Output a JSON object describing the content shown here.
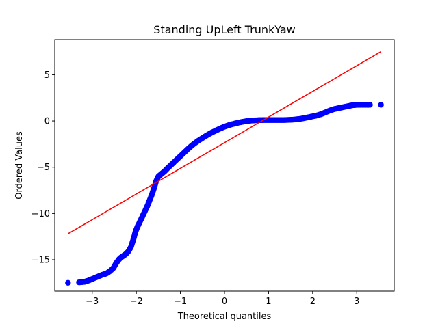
{
  "chart_data": {
    "type": "scatter",
    "title": "Standing UpLeft TrunkYaw",
    "xlabel": "Theoretical quantiles",
    "ylabel": "Ordered Values",
    "xlim": [
      -3.85,
      3.85
    ],
    "ylim": [
      -18.4,
      8.8
    ],
    "xticks": [
      {
        "value": -3,
        "label": "−3"
      },
      {
        "value": -2,
        "label": "−2"
      },
      {
        "value": -1,
        "label": "−1"
      },
      {
        "value": 0,
        "label": "0"
      },
      {
        "value": 1,
        "label": "1"
      },
      {
        "value": 2,
        "label": "2"
      },
      {
        "value": 3,
        "label": "3"
      }
    ],
    "yticks": [
      {
        "value": 5,
        "label": "5"
      },
      {
        "value": 0,
        "label": "0"
      },
      {
        "value": -5,
        "label": "−5"
      },
      {
        "value": -10,
        "label": "−10"
      },
      {
        "value": -15,
        "label": "−15"
      }
    ],
    "grid": false,
    "legend": "none",
    "colors": {
      "points": "#0000ff",
      "fit_line": "#ff0000"
    },
    "series": [
      {
        "kind": "points",
        "x": [
          -3.55,
          -3.3,
          -3.18,
          -3.08,
          -2.98,
          -2.88,
          -2.78,
          -2.68,
          -2.6,
          -2.52,
          -2.46,
          -2.4,
          -2.36,
          -2.3,
          -2.24,
          -2.18,
          -2.12,
          -2.06,
          -2.02,
          -1.98,
          -1.95,
          -1.9,
          -1.85,
          -1.8,
          -1.75,
          -1.7,
          -1.65,
          -1.6,
          -1.55,
          -1.5,
          -1.45,
          -1.4,
          -1.35,
          -1.3,
          -1.2,
          -1.1,
          -1.0,
          -0.9,
          -0.8,
          -0.7,
          -0.6,
          -0.5,
          -0.4,
          -0.3,
          -0.2,
          -0.1,
          0.0,
          0.1,
          0.2,
          0.3,
          0.4,
          0.5,
          0.6,
          0.7,
          0.8,
          0.9,
          1.0,
          1.1,
          1.2,
          1.3,
          1.4,
          1.5,
          1.6,
          1.7,
          1.8,
          1.9,
          2.0,
          2.1,
          2.2,
          2.3,
          2.4,
          2.5,
          2.6,
          2.7,
          2.8,
          2.9,
          3.0,
          3.1,
          3.3,
          3.55
        ],
        "y": [
          -17.5,
          -17.45,
          -17.4,
          -17.25,
          -17.05,
          -16.85,
          -16.65,
          -16.5,
          -16.25,
          -15.9,
          -15.4,
          -15.0,
          -14.8,
          -14.6,
          -14.4,
          -14.1,
          -13.6,
          -12.7,
          -12.0,
          -11.5,
          -11.2,
          -10.7,
          -10.2,
          -9.7,
          -9.2,
          -8.6,
          -8.0,
          -7.3,
          -6.5,
          -6.0,
          -5.8,
          -5.6,
          -5.4,
          -5.15,
          -4.7,
          -4.25,
          -3.8,
          -3.35,
          -2.9,
          -2.5,
          -2.15,
          -1.85,
          -1.55,
          -1.28,
          -1.05,
          -0.82,
          -0.62,
          -0.45,
          -0.32,
          -0.2,
          -0.1,
          -0.02,
          0.04,
          0.07,
          0.09,
          0.1,
          0.1,
          0.1,
          0.1,
          0.1,
          0.11,
          0.13,
          0.16,
          0.22,
          0.3,
          0.4,
          0.5,
          0.6,
          0.75,
          0.95,
          1.15,
          1.3,
          1.4,
          1.5,
          1.6,
          1.7,
          1.75,
          1.75,
          1.75,
          1.75
        ]
      },
      {
        "kind": "line",
        "x": [
          -3.55,
          3.55
        ],
        "y": [
          -12.2,
          7.5
        ]
      }
    ]
  }
}
